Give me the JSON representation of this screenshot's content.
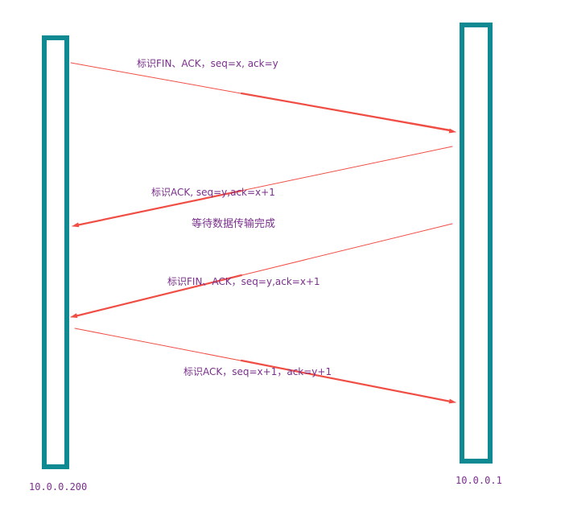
{
  "hosts": {
    "left": {
      "label": "10.0.0.200"
    },
    "right": {
      "label": "10.0.0.1"
    }
  },
  "messages": [
    {
      "label": "标识FIN、ACK，seq=x, ack=y",
      "direction": "left-to-right"
    },
    {
      "label": "标识ACK, seq=y,ack=x+1",
      "direction": "right-to-left"
    },
    {
      "label": "标识FIN、ACK，seq=y,ack=x+1",
      "direction": "right-to-left"
    },
    {
      "label": "标识ACK，seq=x+1，ack=y+1",
      "direction": "left-to-right"
    }
  ],
  "note": {
    "label": "等待数据传输完成"
  },
  "colors": {
    "host_bar": "#0f8a92",
    "arrow": "#f04e45",
    "text": "#7a2f8c"
  }
}
